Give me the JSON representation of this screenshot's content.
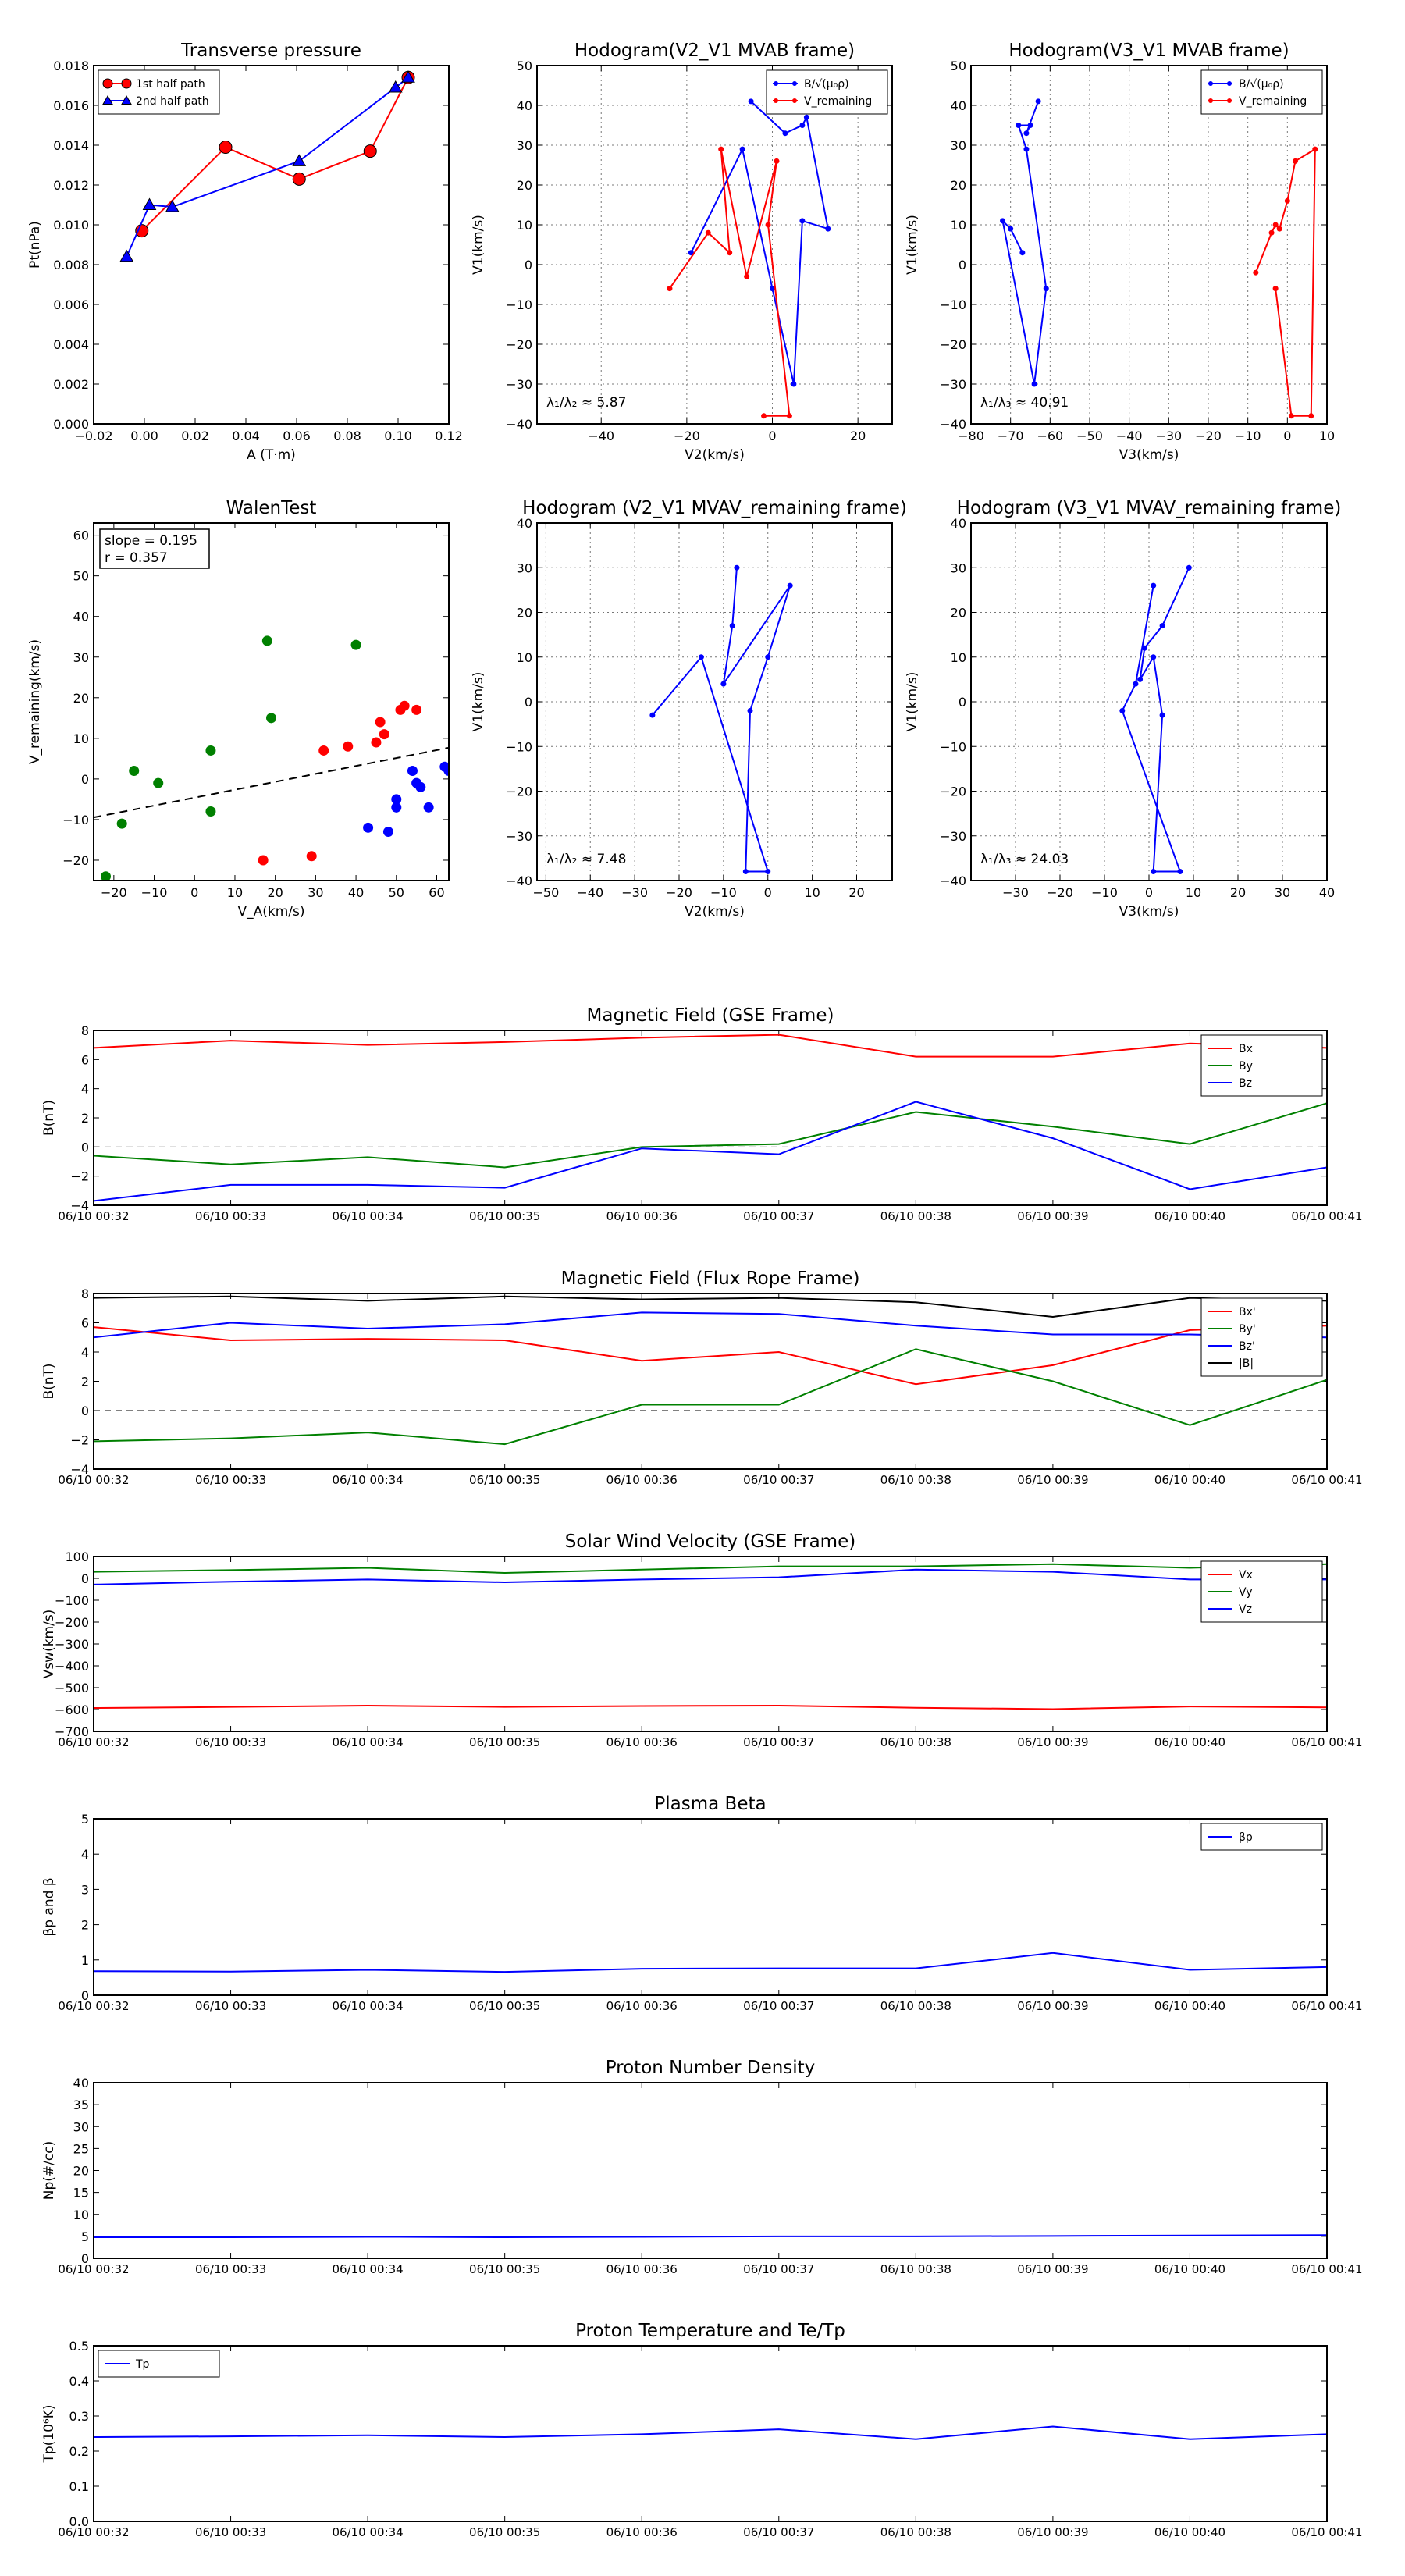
{
  "chart_data": [
    {
      "id": "transverse_pressure",
      "type": "line",
      "title": "Transverse pressure",
      "xlabel": "A (T·m)",
      "ylabel": "Pt(nPa)",
      "xlim": [
        -0.02,
        0.12
      ],
      "ylim": [
        0,
        0.018
      ],
      "xticks": [
        -0.02,
        0.0,
        0.02,
        0.04,
        0.06,
        0.08,
        0.1,
        0.12
      ],
      "xtick_labels": [
        "−0.02",
        "0.00",
        "0.02",
        "0.04",
        "0.06",
        "0.08",
        "0.10",
        "0.12"
      ],
      "yticks": [
        0,
        0.002,
        0.004,
        0.006,
        0.008,
        0.01,
        0.012,
        0.014,
        0.016,
        0.018
      ],
      "ytick_labels": [
        "0.000",
        "0.002",
        "0.004",
        "0.006",
        "0.008",
        "0.010",
        "0.012",
        "0.014",
        "0.016",
        "0.018"
      ],
      "grid": false,
      "legend": "top-left",
      "series": [
        {
          "name": "1st half path",
          "color": "#ff0000",
          "marker": "circle",
          "x": [
            0.104,
            0.089,
            0.061,
            0.032,
            -0.001
          ],
          "y": [
            0.0174,
            0.0137,
            0.0123,
            0.0139,
            0.0097
          ]
        },
        {
          "name": "2nd half path",
          "color": "#0000ff",
          "marker": "triangle",
          "x": [
            0.104,
            0.099,
            0.061,
            0.011,
            0.002,
            -0.007
          ],
          "y": [
            0.0174,
            0.0169,
            0.0132,
            0.0109,
            0.011,
            0.0084
          ]
        }
      ]
    },
    {
      "id": "hodogram_v2_mvab",
      "type": "line",
      "title": "Hodogram(V2_V1 MVAB frame)",
      "xlabel": "V2(km/s)",
      "ylabel": "V1(km/s)",
      "xlim": [
        -55,
        28
      ],
      "ylim": [
        -40,
        50
      ],
      "xticks": [
        -40,
        -20,
        0,
        20
      ],
      "xtick_labels": [
        "−40",
        "−20",
        "0",
        "20"
      ],
      "yticks": [
        -40,
        -30,
        -20,
        -10,
        0,
        10,
        20,
        30,
        40,
        50
      ],
      "ytick_labels": [
        "−40",
        "−30",
        "−20",
        "−10",
        "0",
        "10",
        "20",
        "30",
        "40",
        "50"
      ],
      "grid": true,
      "legend": "top-right",
      "annotation": "λ₁/λ₂ ≈ 5.87",
      "series": [
        {
          "name": "B/√(μ₀ρ)",
          "color": "#0000ff",
          "x": [
            -5,
            3,
            7,
            8,
            13,
            7,
            5,
            0,
            -7,
            -19
          ],
          "y": [
            41,
            33,
            35,
            37,
            9,
            11,
            -30,
            -6,
            29,
            3
          ]
        },
        {
          "name": "V_remaining",
          "color": "#ff0000",
          "x": [
            -24,
            -15,
            -10,
            -12,
            -6,
            1,
            -1,
            4,
            -2
          ],
          "y": [
            -6,
            8,
            3,
            29,
            -3,
            26,
            10,
            -38,
            -38
          ]
        }
      ]
    },
    {
      "id": "hodogram_v3_mvab",
      "type": "line",
      "title": "Hodogram(V3_V1 MVAB frame)",
      "xlabel": "V3(km/s)",
      "ylabel": "V1(km/s)",
      "xlim": [
        -80,
        10
      ],
      "ylim": [
        -40,
        50
      ],
      "xticks": [
        -80,
        -70,
        -60,
        -50,
        -40,
        -30,
        -20,
        -10,
        0,
        10
      ],
      "xtick_labels": [
        "−80",
        "−70",
        "−60",
        "−50",
        "−40",
        "−30",
        "−20",
        "−10",
        "0",
        "10"
      ],
      "yticks": [
        -40,
        -30,
        -20,
        -10,
        0,
        10,
        20,
        30,
        40,
        50
      ],
      "ytick_labels": [
        "−40",
        "−30",
        "−20",
        "−10",
        "0",
        "10",
        "20",
        "30",
        "40",
        "50"
      ],
      "grid": true,
      "legend": "top-right",
      "annotation": "λ₁/λ₃ ≈ 40.91",
      "series": [
        {
          "name": "B/√(μ₀ρ)",
          "color": "#0000ff",
          "x": [
            -63,
            -66,
            -65,
            -68,
            -66,
            -61,
            -64,
            -72,
            -70,
            -67
          ],
          "y": [
            41,
            33,
            35,
            35,
            29,
            -6,
            -30,
            11,
            9,
            3
          ]
        },
        {
          "name": "V_remaining",
          "color": "#ff0000",
          "x": [
            -8,
            -4,
            -3,
            -2,
            0,
            2,
            7,
            6,
            1,
            -3
          ],
          "y": [
            -2,
            8,
            10,
            9,
            16,
            26,
            29,
            -38,
            -38,
            -6
          ]
        }
      ]
    },
    {
      "id": "walen_test",
      "type": "scatter",
      "title": "WalenTest",
      "xlabel": "V_A(km/s)",
      "ylabel": "V_remaining(km/s)",
      "xlim": [
        -25,
        63
      ],
      "ylim": [
        -25,
        63
      ],
      "xticks": [
        -20,
        -10,
        0,
        10,
        20,
        30,
        40,
        50,
        60
      ],
      "xtick_labels": [
        "−20",
        "−10",
        "0",
        "10",
        "20",
        "30",
        "40",
        "50",
        "60"
      ],
      "yticks": [
        -20,
        -10,
        0,
        10,
        20,
        30,
        40,
        50,
        60
      ],
      "ytick_labels": [
        "−20",
        "−10",
        "0",
        "10",
        "20",
        "30",
        "40",
        "50",
        "60"
      ],
      "grid": false,
      "annotation_lines": [
        "slope = 0.195",
        "r = 0.357"
      ],
      "fit_line": {
        "slope": 0.195,
        "intercept": -4.6,
        "color": "#000000",
        "style": "dashed"
      },
      "series": [
        {
          "color": "#008000",
          "x": [
            -22,
            -18,
            -15,
            -9,
            4,
            4,
            18,
            19,
            40
          ],
          "y": [
            -24,
            -11,
            2,
            -1,
            -8,
            7,
            34,
            15,
            33
          ]
        },
        {
          "color": "#ff0000",
          "x": [
            17,
            29,
            32,
            38,
            45,
            46,
            47,
            51,
            52,
            55
          ],
          "y": [
            -20,
            -19,
            7,
            8,
            9,
            14,
            11,
            17,
            18,
            17
          ]
        },
        {
          "color": "#0000ff",
          "x": [
            43,
            48,
            50,
            50,
            54,
            55,
            56,
            58,
            62,
            63
          ],
          "y": [
            -12,
            -13,
            -5,
            -7,
            2,
            -1,
            -2,
            -7,
            3,
            2
          ]
        }
      ]
    },
    {
      "id": "hodogram_v2_mvav",
      "type": "line",
      "title": "Hodogram (V2_V1 MVAV_remaining frame)",
      "xlabel": "V2(km/s)",
      "ylabel": "V1(km/s)",
      "xlim": [
        -52,
        28
      ],
      "ylim": [
        -40,
        40
      ],
      "xticks": [
        -50,
        -40,
        -30,
        -20,
        -10,
        0,
        10,
        20
      ],
      "xtick_labels": [
        "−50",
        "−40",
        "−30",
        "−20",
        "−10",
        "0",
        "10",
        "20"
      ],
      "yticks": [
        -40,
        -30,
        -20,
        -10,
        0,
        10,
        20,
        30,
        40
      ],
      "ytick_labels": [
        "−40",
        "−30",
        "−20",
        "−10",
        "0",
        "10",
        "20",
        "30",
        "40"
      ],
      "grid": true,
      "annotation": "λ₁/λ₂ ≈ 7.48",
      "series": [
        {
          "color": "#0000ff",
          "x": [
            -7,
            -8,
            -10,
            5,
            0,
            -4,
            -5,
            0,
            -15,
            -26
          ],
          "y": [
            30,
            17,
            4,
            26,
            10,
            -2,
            -38,
            -38,
            10,
            -3
          ]
        }
      ]
    },
    {
      "id": "hodogram_v3_mvav",
      "type": "line",
      "title": "Hodogram (V3_V1 MVAV_remaining frame)",
      "xlabel": "V3(km/s)",
      "ylabel": "V1(km/s)",
      "xlim": [
        -40,
        40
      ],
      "ylim": [
        -40,
        40
      ],
      "xticks": [
        -30,
        -20,
        -10,
        0,
        10,
        20,
        30,
        40
      ],
      "xtick_labels": [
        "−30",
        "−20",
        "−10",
        "0",
        "10",
        "20",
        "30",
        "40"
      ],
      "yticks": [
        -40,
        -30,
        -20,
        -10,
        0,
        10,
        20,
        30,
        40
      ],
      "ytick_labels": [
        "−40",
        "−30",
        "−20",
        "−10",
        "0",
        "10",
        "20",
        "30",
        "40"
      ],
      "grid": true,
      "annotation": "λ₁/λ₃ ≈ 24.03",
      "series": [
        {
          "color": "#0000ff",
          "x": [
            9,
            3,
            -1,
            -2,
            1,
            3,
            1,
            7,
            -6,
            -3,
            1
          ],
          "y": [
            30,
            17,
            12,
            5,
            10,
            -3,
            -38,
            -38,
            -2,
            4,
            26
          ]
        }
      ]
    },
    {
      "id": "magnetic_field_gse",
      "type": "line",
      "title": "Magnetic Field (GSE Frame)",
      "ylabel": "B(nT)",
      "x": [
        "06/10 00:32",
        "06/10 00:33",
        "06/10 00:34",
        "06/10 00:35",
        "06/10 00:36",
        "06/10 00:37",
        "06/10 00:38",
        "06/10 00:39",
        "06/10 00:40",
        "06/10 00:41"
      ],
      "ylim": [
        -4,
        8
      ],
      "yticks": [
        -4,
        -2,
        0,
        2,
        4,
        6,
        8
      ],
      "ytick_labels": [
        "−4",
        "−2",
        "0",
        "2",
        "4",
        "6",
        "8"
      ],
      "zero_line": true,
      "legend": "top-right",
      "series": [
        {
          "name": "Bx",
          "color": "#ff0000",
          "values": [
            6.8,
            7.3,
            7.0,
            7.2,
            7.5,
            7.7,
            6.2,
            6.2,
            7.1,
            6.8
          ]
        },
        {
          "name": "By",
          "color": "#008000",
          "values": [
            -0.6,
            -1.2,
            -0.7,
            -1.4,
            0.0,
            0.2,
            2.4,
            1.4,
            0.2,
            3.0
          ]
        },
        {
          "name": "Bz",
          "color": "#0000ff",
          "values": [
            -3.7,
            -2.6,
            -2.6,
            -2.8,
            -0.1,
            -0.5,
            3.1,
            0.6,
            -2.9,
            -1.4
          ]
        }
      ]
    },
    {
      "id": "magnetic_field_flux_rope",
      "type": "line",
      "title": "Magnetic Field (Flux Rope Frame)",
      "ylabel": "B(nT)",
      "x": [
        "06/10 00:32",
        "06/10 00:33",
        "06/10 00:34",
        "06/10 00:35",
        "06/10 00:36",
        "06/10 00:37",
        "06/10 00:38",
        "06/10 00:39",
        "06/10 00:40",
        "06/10 00:41"
      ],
      "ylim": [
        -4,
        8
      ],
      "yticks": [
        -4,
        -2,
        0,
        2,
        4,
        6,
        8
      ],
      "ytick_labels": [
        "−4",
        "−2",
        "0",
        "2",
        "4",
        "6",
        "8"
      ],
      "zero_line": true,
      "legend": "top-right",
      "series": [
        {
          "name": "Bx'",
          "color": "#ff0000",
          "values": [
            5.7,
            4.8,
            4.9,
            4.8,
            3.4,
            4.0,
            1.8,
            3.1,
            5.5,
            5.8
          ]
        },
        {
          "name": "By'",
          "color": "#008000",
          "values": [
            -2.1,
            -1.9,
            -1.5,
            -2.3,
            0.4,
            0.4,
            4.2,
            2.0,
            -1.0,
            2.1
          ]
        },
        {
          "name": "Bz'",
          "color": "#0000ff",
          "values": [
            5.0,
            6.0,
            5.6,
            5.9,
            6.7,
            6.6,
            5.8,
            5.2,
            5.2,
            5.0
          ]
        },
        {
          "name": "|B|",
          "color": "#000000",
          "values": [
            7.7,
            7.8,
            7.5,
            7.8,
            7.6,
            7.7,
            7.4,
            6.4,
            7.7,
            7.5
          ]
        }
      ]
    },
    {
      "id": "solar_wind_velocity",
      "type": "line",
      "title": "Solar Wind Velocity (GSE Frame)",
      "ylabel": "Vsw(km/s)",
      "x": [
        "06/10 00:32",
        "06/10 00:33",
        "06/10 00:34",
        "06/10 00:35",
        "06/10 00:36",
        "06/10 00:37",
        "06/10 00:38",
        "06/10 00:39",
        "06/10 00:40",
        "06/10 00:41"
      ],
      "ylim": [
        -700,
        100
      ],
      "yticks": [
        -700,
        -600,
        -500,
        -400,
        -300,
        -200,
        -100,
        0,
        100
      ],
      "ytick_labels": [
        "−700",
        "−600",
        "−500",
        "−400",
        "−300",
        "−200",
        "−100",
        "0",
        "100"
      ],
      "legend": "top-right",
      "series": [
        {
          "name": "Vx",
          "color": "#ff0000",
          "values": [
            -593,
            -588,
            -582,
            -588,
            -584,
            -582,
            -592,
            -598,
            -586,
            -590
          ]
        },
        {
          "name": "Vy",
          "color": "#008000",
          "values": [
            30,
            38,
            48,
            25,
            40,
            55,
            55,
            65,
            48,
            65
          ]
        },
        {
          "name": "Vz",
          "color": "#0000ff",
          "values": [
            -28,
            -15,
            -5,
            -18,
            -5,
            5,
            40,
            30,
            -5,
            -5
          ]
        }
      ]
    },
    {
      "id": "plasma_beta",
      "type": "line",
      "title": "Plasma Beta",
      "ylabel": "βp and β",
      "x": [
        "06/10 00:32",
        "06/10 00:33",
        "06/10 00:34",
        "06/10 00:35",
        "06/10 00:36",
        "06/10 00:37",
        "06/10 00:38",
        "06/10 00:39",
        "06/10 00:40",
        "06/10 00:41"
      ],
      "ylim": [
        0,
        5
      ],
      "yticks": [
        0,
        1,
        2,
        3,
        4,
        5
      ],
      "ytick_labels": [
        "0",
        "1",
        "2",
        "3",
        "4",
        "5"
      ],
      "legend": "top-right",
      "series": [
        {
          "name": "βp",
          "color": "#0000ff",
          "values": [
            0.68,
            0.67,
            0.72,
            0.66,
            0.75,
            0.76,
            0.76,
            1.2,
            0.72,
            0.8
          ]
        }
      ]
    },
    {
      "id": "proton_number_density",
      "type": "line",
      "title": "Proton Number Density",
      "ylabel": "Np(#/cc)",
      "x": [
        "06/10 00:32",
        "06/10 00:33",
        "06/10 00:34",
        "06/10 00:35",
        "06/10 00:36",
        "06/10 00:37",
        "06/10 00:38",
        "06/10 00:39",
        "06/10 00:40",
        "06/10 00:41"
      ],
      "ylim": [
        0,
        40
      ],
      "yticks": [
        0,
        5,
        10,
        15,
        20,
        25,
        30,
        35,
        40
      ],
      "ytick_labels": [
        "0",
        "5",
        "10",
        "15",
        "20",
        "25",
        "30",
        "35",
        "40"
      ],
      "series": [
        {
          "color": "#0000ff",
          "values": [
            4.8,
            4.8,
            4.9,
            4.8,
            4.9,
            5.0,
            5.0,
            5.1,
            5.2,
            5.3
          ]
        }
      ]
    },
    {
      "id": "proton_temperature",
      "type": "line",
      "title": "Proton Temperature and Te/Tp",
      "ylabel": "Tp(10⁶K)",
      "x": [
        "06/10 00:32",
        "06/10 00:33",
        "06/10 00:34",
        "06/10 00:35",
        "06/10 00:36",
        "06/10 00:37",
        "06/10 00:38",
        "06/10 00:39",
        "06/10 00:40",
        "06/10 00:41"
      ],
      "ylim": [
        0,
        0.5
      ],
      "yticks": [
        0,
        0.1,
        0.2,
        0.3,
        0.4,
        0.5
      ],
      "ytick_labels": [
        "0.0",
        "0.1",
        "0.2",
        "0.3",
        "0.4",
        "0.5"
      ],
      "legend": "top-left",
      "series": [
        {
          "name": "Tp",
          "color": "#0000ff",
          "values": [
            0.24,
            0.242,
            0.245,
            0.24,
            0.248,
            0.262,
            0.234,
            0.27,
            0.234,
            0.248
          ]
        }
      ]
    }
  ]
}
